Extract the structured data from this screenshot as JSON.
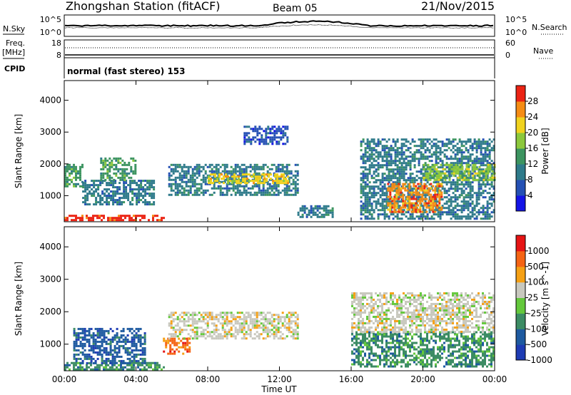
{
  "header": {
    "title": "Zhongshan Station (fitACF)",
    "beam": "Beam 05",
    "date": "21/Nov/2015"
  },
  "noise_panel": {
    "left_label": "N.Sky",
    "left_ticks": [
      "10^5",
      "10^0"
    ],
    "right_label": "N.Search",
    "right_ticks": [
      "10^5",
      "10^0"
    ]
  },
  "freq_panel": {
    "left_label_line1": "Freq.",
    "left_label_line2": "[MHz]",
    "left_ticks": [
      "18",
      "8"
    ],
    "right_label": "Nave",
    "right_ticks": [
      "60",
      "0"
    ]
  },
  "cpid": {
    "label": "CPID",
    "value": "normal (fast stereo) 153"
  },
  "x_axis": {
    "title": "Time UT",
    "ticks": [
      "00:00",
      "04:00",
      "08:00",
      "12:00",
      "16:00",
      "20:00",
      "00:00"
    ]
  },
  "chart_data": [
    {
      "type": "heatmap",
      "name": "power",
      "ylabel": "Slant Range [km]",
      "yticks": [
        1000,
        2000,
        3000,
        4000
      ],
      "ylim": [
        180,
        4620
      ],
      "xlim": [
        0,
        24
      ],
      "colorbar": {
        "label": "Power [dB]",
        "ticks": [
          "28",
          "24",
          "20",
          "16",
          "12",
          "8",
          "4"
        ],
        "colors": [
          "#1414e6",
          "#2450b4",
          "#2e7a8a",
          "#3c9460",
          "#8cc83c",
          "#f0d21e",
          "#f58c14",
          "#eb2314"
        ]
      },
      "bands": [
        {
          "t0": 0.0,
          "t1": 5.5,
          "r0": 250,
          "r1": 400,
          "level": 7
        },
        {
          "t0": 0.0,
          "t1": 1.0,
          "r0": 1300,
          "r1": 2000,
          "level": 3
        },
        {
          "t0": 1.0,
          "t1": 5.0,
          "r0": 700,
          "r1": 1500,
          "level": 2
        },
        {
          "t0": 2.0,
          "t1": 4.0,
          "r0": 1500,
          "r1": 2200,
          "level": 3
        },
        {
          "t0": 5.8,
          "t1": 13.0,
          "r0": 1000,
          "r1": 2000,
          "level": 2
        },
        {
          "t0": 8.0,
          "t1": 12.5,
          "r0": 1400,
          "r1": 1700,
          "level": 5
        },
        {
          "t0": 10.0,
          "t1": 12.5,
          "r0": 2600,
          "r1": 3200,
          "level": 1
        },
        {
          "t0": 13.0,
          "t1": 15.0,
          "r0": 300,
          "r1": 700,
          "level": 2
        },
        {
          "t0": 16.5,
          "t1": 24.0,
          "r0": 300,
          "r1": 2800,
          "level": 2
        },
        {
          "t0": 18.0,
          "t1": 21.0,
          "r0": 500,
          "r1": 1400,
          "level": 6
        },
        {
          "t0": 20.0,
          "t1": 24.0,
          "r0": 1500,
          "r1": 2000,
          "level": 4
        }
      ]
    },
    {
      "type": "heatmap",
      "name": "velocity",
      "ylabel": "Slant Range [km]",
      "yticks": [
        1000,
        2000,
        3000,
        4000
      ],
      "ylim": [
        180,
        4620
      ],
      "xlim": [
        0,
        24
      ],
      "colorbar": {
        "label": "Velocity [m s^-1]",
        "ticks": [
          "1000",
          "500",
          "100",
          "25",
          "-25",
          "-100",
          "-500",
          "-1000"
        ],
        "colors": [
          "#1e3cb4",
          "#1e5aa0",
          "#3c8c64",
          "#64c83c",
          "#c8c8be",
          "#f5a014",
          "#f56414",
          "#e61414"
        ]
      },
      "bands": [
        {
          "t0": 0.0,
          "t1": 5.5,
          "r0": 250,
          "r1": 450,
          "level": 2
        },
        {
          "t0": 0.5,
          "t1": 4.5,
          "r0": 400,
          "r1": 1500,
          "level": 1
        },
        {
          "t0": 5.5,
          "t1": 7.0,
          "r0": 700,
          "r1": 1200,
          "level": 6
        },
        {
          "t0": 5.8,
          "t1": 13.0,
          "r0": 1200,
          "r1": 2000,
          "level": 4
        },
        {
          "t0": 16.0,
          "t1": 24.0,
          "r0": 300,
          "r1": 1400,
          "level": 2
        },
        {
          "t0": 16.0,
          "t1": 24.0,
          "r0": 1400,
          "r1": 2600,
          "level": 4
        }
      ]
    }
  ]
}
